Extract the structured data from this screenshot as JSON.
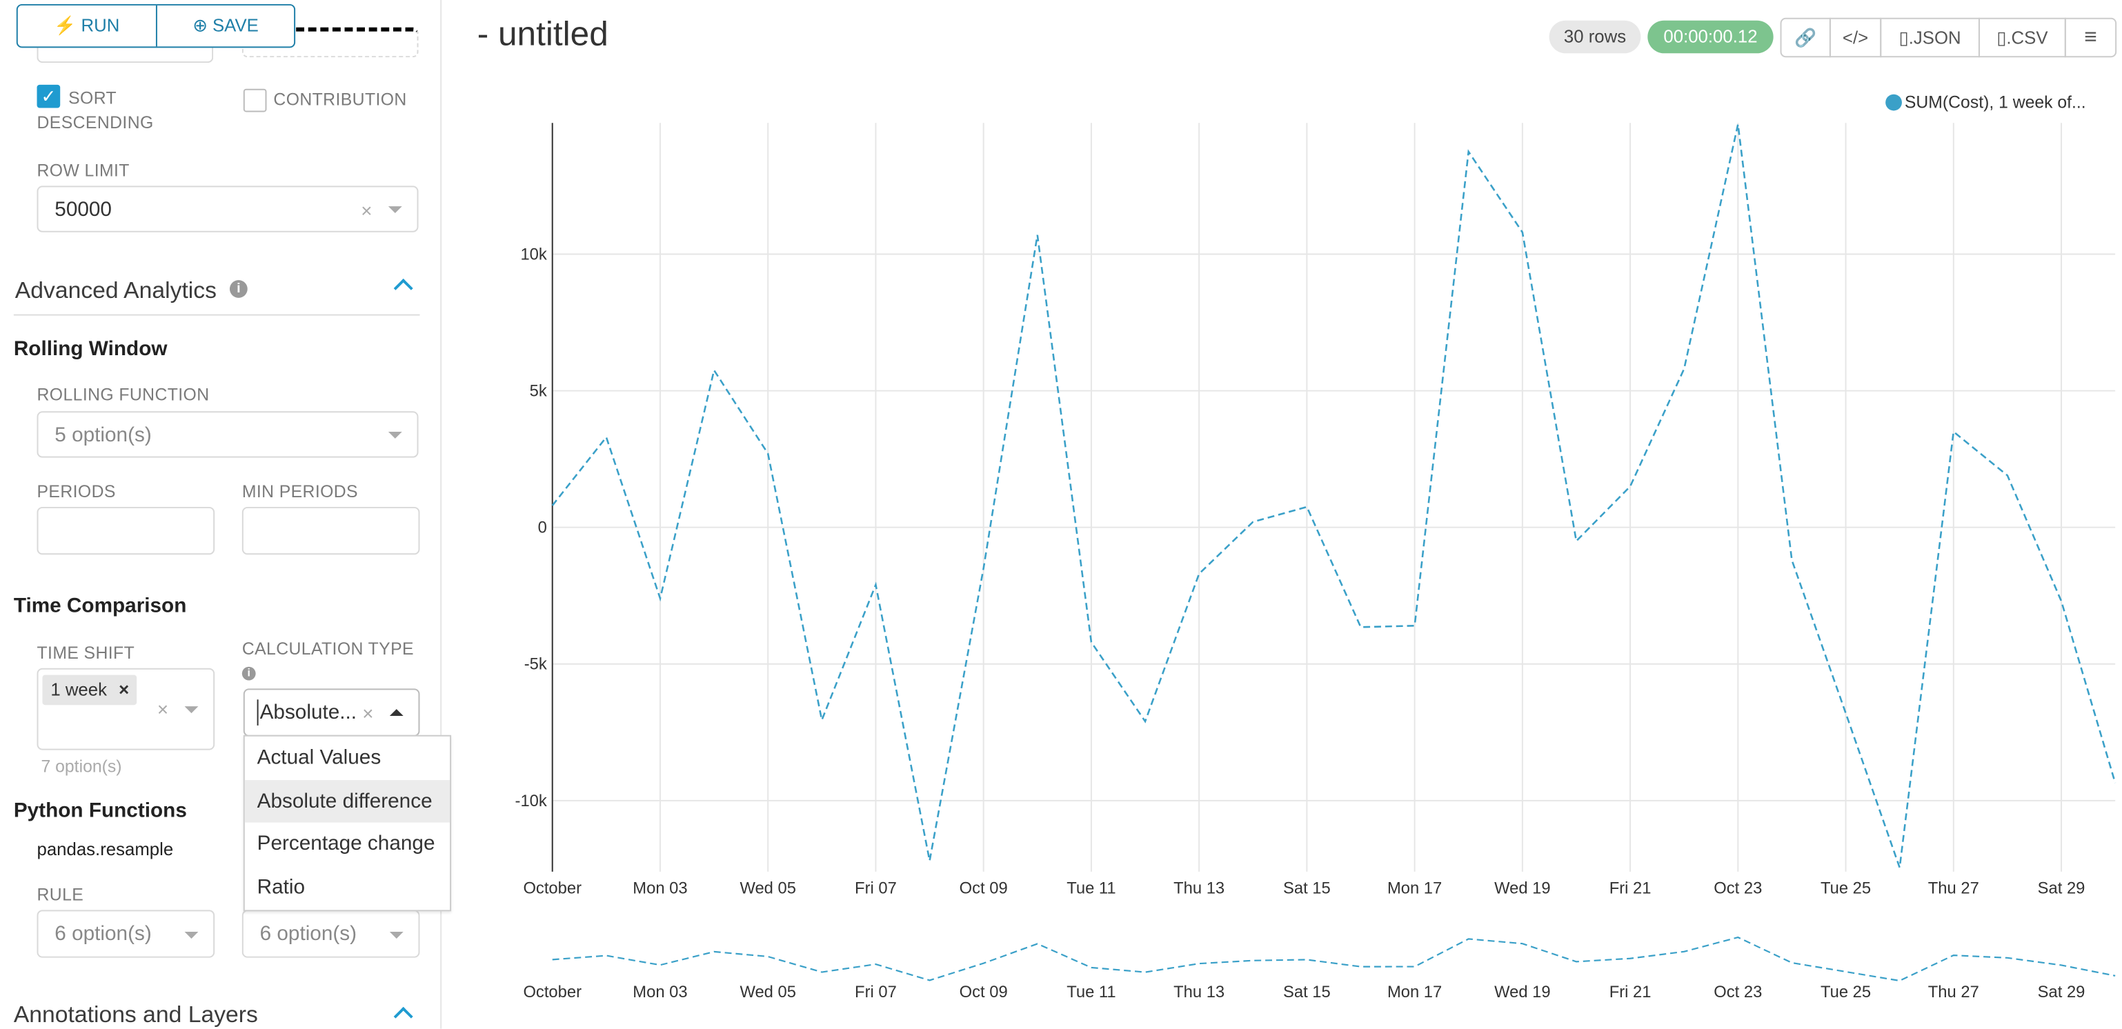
{
  "header": {
    "title": "- untitled",
    "row_count": "30 rows",
    "duration": "00:00:00.12",
    "json": ".JSON",
    "csv": ".CSV"
  },
  "buttons": {
    "run": "RUN",
    "save": "SAVE"
  },
  "sidebar": {
    "sort_descending": "SORT DESCENDING",
    "contribution": "CONTRIBUTION",
    "row_limit_label": "ROW LIMIT",
    "row_limit": "50000",
    "advanced_analytics": "Advanced Analytics",
    "rolling_window": "Rolling Window",
    "rolling_function_label": "ROLLING FUNCTION",
    "rolling_function": "5 option(s)",
    "periods": "PERIODS",
    "min_periods": "MIN PERIODS",
    "time_comparison": "Time Comparison",
    "time_shift_label": "TIME SHIFT",
    "time_shift_tag": "1 week",
    "time_shift_options": "7 option(s)",
    "calculation_type_label": "CALCULATION TYPE",
    "calculation_type": "Absolute...",
    "calculation_options": [
      "Actual Values",
      "Absolute difference",
      "Percentage change",
      "Ratio"
    ],
    "python_functions": "Python Functions",
    "resample": "pandas.resample",
    "rule_label": "RULE",
    "rule": "6 option(s)",
    "method": "6 option(s)",
    "annotations": "Annotations and Layers"
  },
  "chart_data": {
    "type": "line",
    "categories": [
      "October",
      null,
      "Mon 03",
      null,
      "Wed 05",
      null,
      "Fri 07",
      null,
      "Oct 09",
      null,
      "Tue 11",
      null,
      "Thu 13",
      null,
      "Sat 15",
      null,
      "Mon 17",
      null,
      "Wed 19",
      null,
      "Fri 21",
      null,
      "Oct 23",
      null,
      "Tue 25",
      null,
      "Thu 27",
      null,
      "Sat 29",
      null
    ],
    "series": [
      {
        "name": "SUM(Cost), 1 week of...",
        "color": "#3aa0c8",
        "values": [
          800,
          3300,
          -2600,
          5750,
          2700,
          -7050,
          -2100,
          -12200,
          -1500,
          10700,
          -4200,
          -7100,
          -1700,
          200,
          750,
          -3650,
          -3600,
          13750,
          10800,
          -500,
          1500,
          5800,
          14750,
          -1200,
          -6800,
          -12450,
          3500,
          1900,
          -2700,
          -9350
        ]
      }
    ],
    "ylim": [
      -12600,
      14800
    ],
    "yticks": [
      {
        "value": -10000,
        "label": "-10k"
      },
      {
        "value": -5000,
        "label": "-5k"
      },
      0,
      {
        "value": 5000,
        "label": "5k"
      },
      {
        "value": 10000,
        "label": "10k"
      }
    ],
    "grid": true,
    "dashed": true,
    "legend": "top-right"
  }
}
